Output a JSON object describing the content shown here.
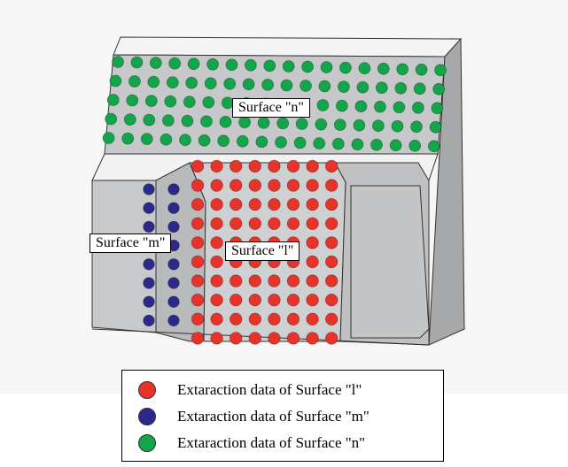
{
  "labels": {
    "surface_n": "Surface \"n\"",
    "surface_m": "Surface \"m\"",
    "surface_l": "Surface \"l\""
  },
  "legend": {
    "items": [
      {
        "key": "l",
        "text": "Extaraction data of Surface \"l\"",
        "color": "#e8332a"
      },
      {
        "key": "m",
        "text": "Extaraction data of Surface \"m\"",
        "color": "#2b2a8c"
      },
      {
        "key": "n",
        "text": "Extaraction data of Surface \"n\"",
        "color": "#12a54a"
      }
    ]
  },
  "colors": {
    "block_front": "#c7c8ca",
    "block_top": "#f4f4f4",
    "block_side": "#a7a8aa",
    "edge": "#333333",
    "dot_l": "#e8332a",
    "dot_m": "#2b2a8c",
    "dot_n": "#12a54a"
  }
}
